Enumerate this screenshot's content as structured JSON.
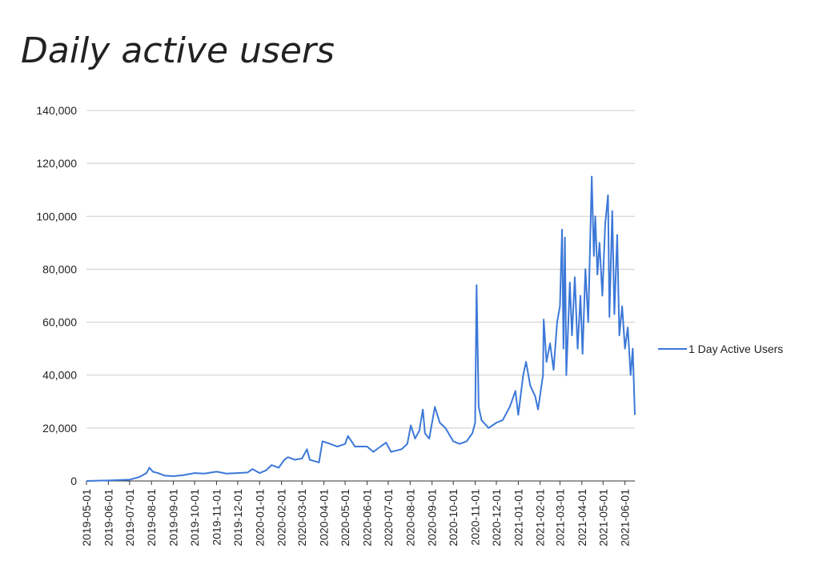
{
  "chart_data": {
    "type": "line",
    "title": "Daily active users",
    "x": [
      "2019-05-01",
      "2019-06-01",
      "2019-07-01",
      "2019-07-15",
      "2019-07-25",
      "2019-07-29",
      "2019-08-03",
      "2019-08-10",
      "2019-08-20",
      "2019-09-01",
      "2019-09-15",
      "2019-10-01",
      "2019-10-15",
      "2019-11-01",
      "2019-11-15",
      "2019-12-01",
      "2019-12-15",
      "2019-12-22",
      "2020-01-01",
      "2020-01-10",
      "2020-01-18",
      "2020-01-28",
      "2020-02-05",
      "2020-02-10",
      "2020-02-20",
      "2020-03-01",
      "2020-03-08",
      "2020-03-12",
      "2020-03-25",
      "2020-03-30",
      "2020-04-10",
      "2020-04-20",
      "2020-05-01",
      "2020-05-05",
      "2020-05-15",
      "2020-06-01",
      "2020-06-10",
      "2020-06-20",
      "2020-06-28",
      "2020-07-05",
      "2020-07-20",
      "2020-07-28",
      "2020-08-02",
      "2020-08-08",
      "2020-08-14",
      "2020-08-19",
      "2020-08-22",
      "2020-08-28",
      "2020-09-05",
      "2020-09-12",
      "2020-09-20",
      "2020-10-01",
      "2020-10-10",
      "2020-10-20",
      "2020-10-28",
      "2020-11-01",
      "2020-11-03",
      "2020-11-06",
      "2020-11-10",
      "2020-11-20",
      "2020-12-01",
      "2020-12-10",
      "2020-12-20",
      "2020-12-28",
      "2021-01-01",
      "2021-01-08",
      "2021-01-12",
      "2021-01-18",
      "2021-01-25",
      "2021-01-29",
      "2021-02-05",
      "2021-02-06",
      "2021-02-10",
      "2021-02-15",
      "2021-02-20",
      "2021-02-25",
      "2021-03-01",
      "2021-03-04",
      "2021-03-06",
      "2021-03-08",
      "2021-03-10",
      "2021-03-15",
      "2021-03-18",
      "2021-03-22",
      "2021-03-26",
      "2021-03-30",
      "2021-04-02",
      "2021-04-06",
      "2021-04-10",
      "2021-04-15",
      "2021-04-18",
      "2021-04-20",
      "2021-04-23",
      "2021-04-26",
      "2021-04-30",
      "2021-05-04",
      "2021-05-08",
      "2021-05-10",
      "2021-05-14",
      "2021-05-17",
      "2021-05-21",
      "2021-05-24",
      "2021-05-28",
      "2021-06-01",
      "2021-06-05",
      "2021-06-09",
      "2021-06-12",
      "2021-06-15"
    ],
    "series": [
      {
        "name": "1 Day Active Users",
        "color": "#3c78d8",
        "values": [
          0,
          200,
          500,
          1500,
          3000,
          5000,
          3500,
          3000,
          2000,
          1800,
          2200,
          3000,
          2800,
          3500,
          2800,
          3000,
          3200,
          4500,
          3000,
          4000,
          6000,
          5000,
          8000,
          9000,
          8000,
          8500,
          12000,
          8000,
          7000,
          15000,
          14000,
          13000,
          14000,
          17000,
          13000,
          13000,
          11000,
          13000,
          14500,
          11000,
          12000,
          14000,
          21000,
          16000,
          19000,
          27000,
          18000,
          16000,
          28000,
          22000,
          20000,
          15000,
          14000,
          15000,
          18000,
          22000,
          74000,
          28000,
          23000,
          20000,
          22000,
          23000,
          28000,
          34000,
          25000,
          40000,
          45000,
          36000,
          32000,
          27000,
          40000,
          61000,
          45000,
          52000,
          42000,
          60000,
          66000,
          95000,
          50000,
          92000,
          40000,
          75000,
          55000,
          77000,
          50000,
          70000,
          48000,
          80000,
          60000,
          115000,
          85000,
          100000,
          78000,
          90000,
          70000,
          97000,
          108000,
          62000,
          102000,
          63000,
          93000,
          55000,
          66000,
          50000,
          58000,
          40000,
          50000,
          25000
        ]
      }
    ],
    "xlim": [
      "2019-05-01",
      "2021-06-15"
    ],
    "xticks": [
      "2019-05-01",
      "2019-06-01",
      "2019-07-01",
      "2019-08-01",
      "2019-09-01",
      "2019-10-01",
      "2019-11-01",
      "2019-12-01",
      "2020-01-01",
      "2020-02-01",
      "2020-03-01",
      "2020-04-01",
      "2020-05-01",
      "2020-06-01",
      "2020-07-01",
      "2020-08-01",
      "2020-09-01",
      "2020-10-01",
      "2020-11-01",
      "2020-12-01",
      "2021-01-01",
      "2021-02-01",
      "2021-03-01",
      "2021-04-01",
      "2021-05-01",
      "2021-06-01"
    ],
    "ylim": [
      0,
      140000
    ],
    "yticks": [
      0,
      {
        "value": 20000,
        "label": "20,000"
      },
      {
        "value": 40000,
        "label": "40,000"
      },
      {
        "value": 60000,
        "label": "60,000"
      },
      {
        "value": 80000,
        "label": "80,000"
      },
      {
        "value": 100000,
        "label": "100,000"
      },
      {
        "value": 120000,
        "label": "120,000"
      },
      {
        "value": 140000,
        "label": "140,000"
      }
    ],
    "grid": true,
    "legend": "right"
  }
}
